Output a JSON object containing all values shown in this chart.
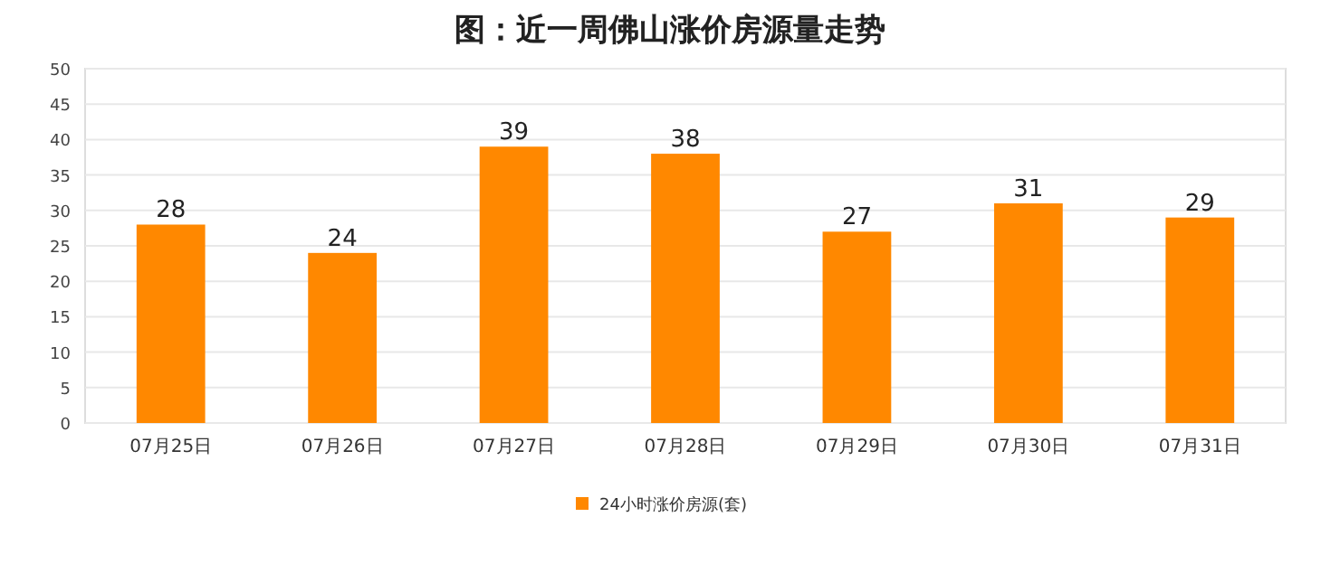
{
  "chart_data": {
    "type": "bar",
    "title": "图：近一周佛山涨价房源量走势",
    "categories": [
      "07月25日",
      "07月26日",
      "07月27日",
      "07月28日",
      "07月29日",
      "07月30日",
      "07月31日"
    ],
    "series": [
      {
        "name": "24小时涨价房源(套)",
        "color": "#ff8800",
        "values": [
          28,
          24,
          39,
          38,
          27,
          31,
          29
        ]
      }
    ],
    "ylim": [
      0,
      50
    ],
    "yticks": [
      0,
      5,
      10,
      15,
      20,
      25,
      30,
      35,
      40,
      45,
      50
    ],
    "grid": "y",
    "legend": "bottom",
    "data_labels": true
  }
}
